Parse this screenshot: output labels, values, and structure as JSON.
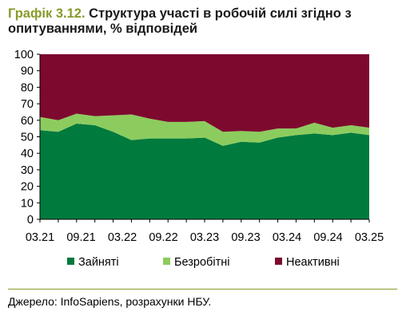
{
  "header": {
    "number": "Графік 3.12.",
    "text": " Структура участі в робочій силі згідно з опитуваннями, % відповідей"
  },
  "chart_data": {
    "type": "area",
    "stacked": true,
    "ylim": [
      0,
      100
    ],
    "yticks": [
      0,
      10,
      20,
      30,
      40,
      50,
      60,
      70,
      80,
      90,
      100
    ],
    "x_tick_labels": [
      "03.21",
      "09.21",
      "03.22",
      "09.22",
      "03.23",
      "09.23",
      "03.24",
      "09.24",
      "03.25"
    ],
    "grid": false,
    "legend_position": "bottom",
    "series": [
      {
        "name": "Зайняті",
        "color": "#007a3d",
        "values": [
          54,
          53,
          58,
          57,
          53,
          48,
          49,
          49,
          49,
          49.5,
          44.5,
          47,
          46.5,
          49.5,
          51,
          52,
          51,
          52.5,
          51
        ]
      },
      {
        "name": "Безробітні",
        "color": "#8ccc5e",
        "values": [
          8,
          7,
          6,
          5.5,
          10,
          15.5,
          12,
          10,
          10,
          10,
          8.5,
          6.5,
          6.5,
          5.5,
          4,
          6.5,
          4.5,
          4.5,
          4.5
        ]
      },
      {
        "name": "Неактивні",
        "color": "#7d0a2e",
        "values": [
          38,
          40,
          36,
          37.5,
          37,
          36.5,
          39,
          41,
          41,
          40.5,
          47,
          46.5,
          47,
          45,
          45,
          41.5,
          44.5,
          43,
          44.5
        ]
      }
    ]
  },
  "footer": {
    "source": "Джерело: InfoSapiens, розрахунки НБУ."
  }
}
